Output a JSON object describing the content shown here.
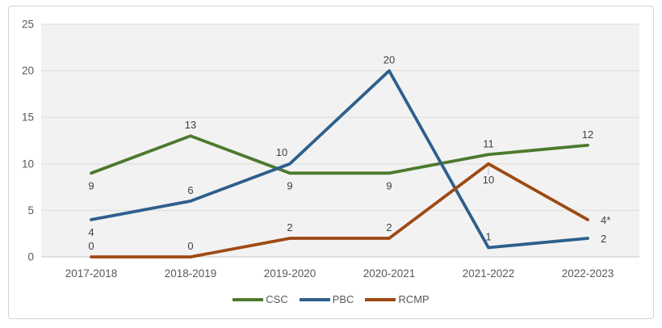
{
  "chart_data": {
    "type": "line",
    "title": "",
    "xlabel": "",
    "ylabel": "",
    "categories": [
      "2017-2018",
      "2018-2019",
      "2019-2020",
      "2020-2021",
      "2021-2022",
      "2022-2023"
    ],
    "series": [
      {
        "name": "CSC",
        "color": "#4c7a2e",
        "values": [
          9,
          13,
          9,
          9,
          11,
          12
        ],
        "labels": [
          "9",
          "13",
          "9",
          "9",
          "11",
          "12"
        ]
      },
      {
        "name": "PBC",
        "color": "#2e5f8c",
        "values": [
          4,
          6,
          10,
          20,
          1,
          2
        ],
        "labels": [
          "4",
          "6",
          "10",
          "20",
          "1",
          "2"
        ]
      },
      {
        "name": "RCMP",
        "color": "#9e4a14",
        "values": [
          0,
          0,
          2,
          2,
          10,
          4
        ],
        "labels": [
          "0",
          "0",
          "2",
          "2",
          "10",
          "4*"
        ]
      }
    ],
    "ylim": [
      0,
      25
    ],
    "y_ticks": [
      0,
      5,
      10,
      15,
      20,
      25
    ],
    "grid": true,
    "legend_position": "bottom",
    "colors": {
      "plot_background": "#f2f2f2",
      "gridline": "#dcdcdc",
      "axis_line": "#c9c9c9",
      "tick_label": "#595959",
      "data_label": "#404040",
      "frame_border": "#d4d4d4"
    }
  }
}
